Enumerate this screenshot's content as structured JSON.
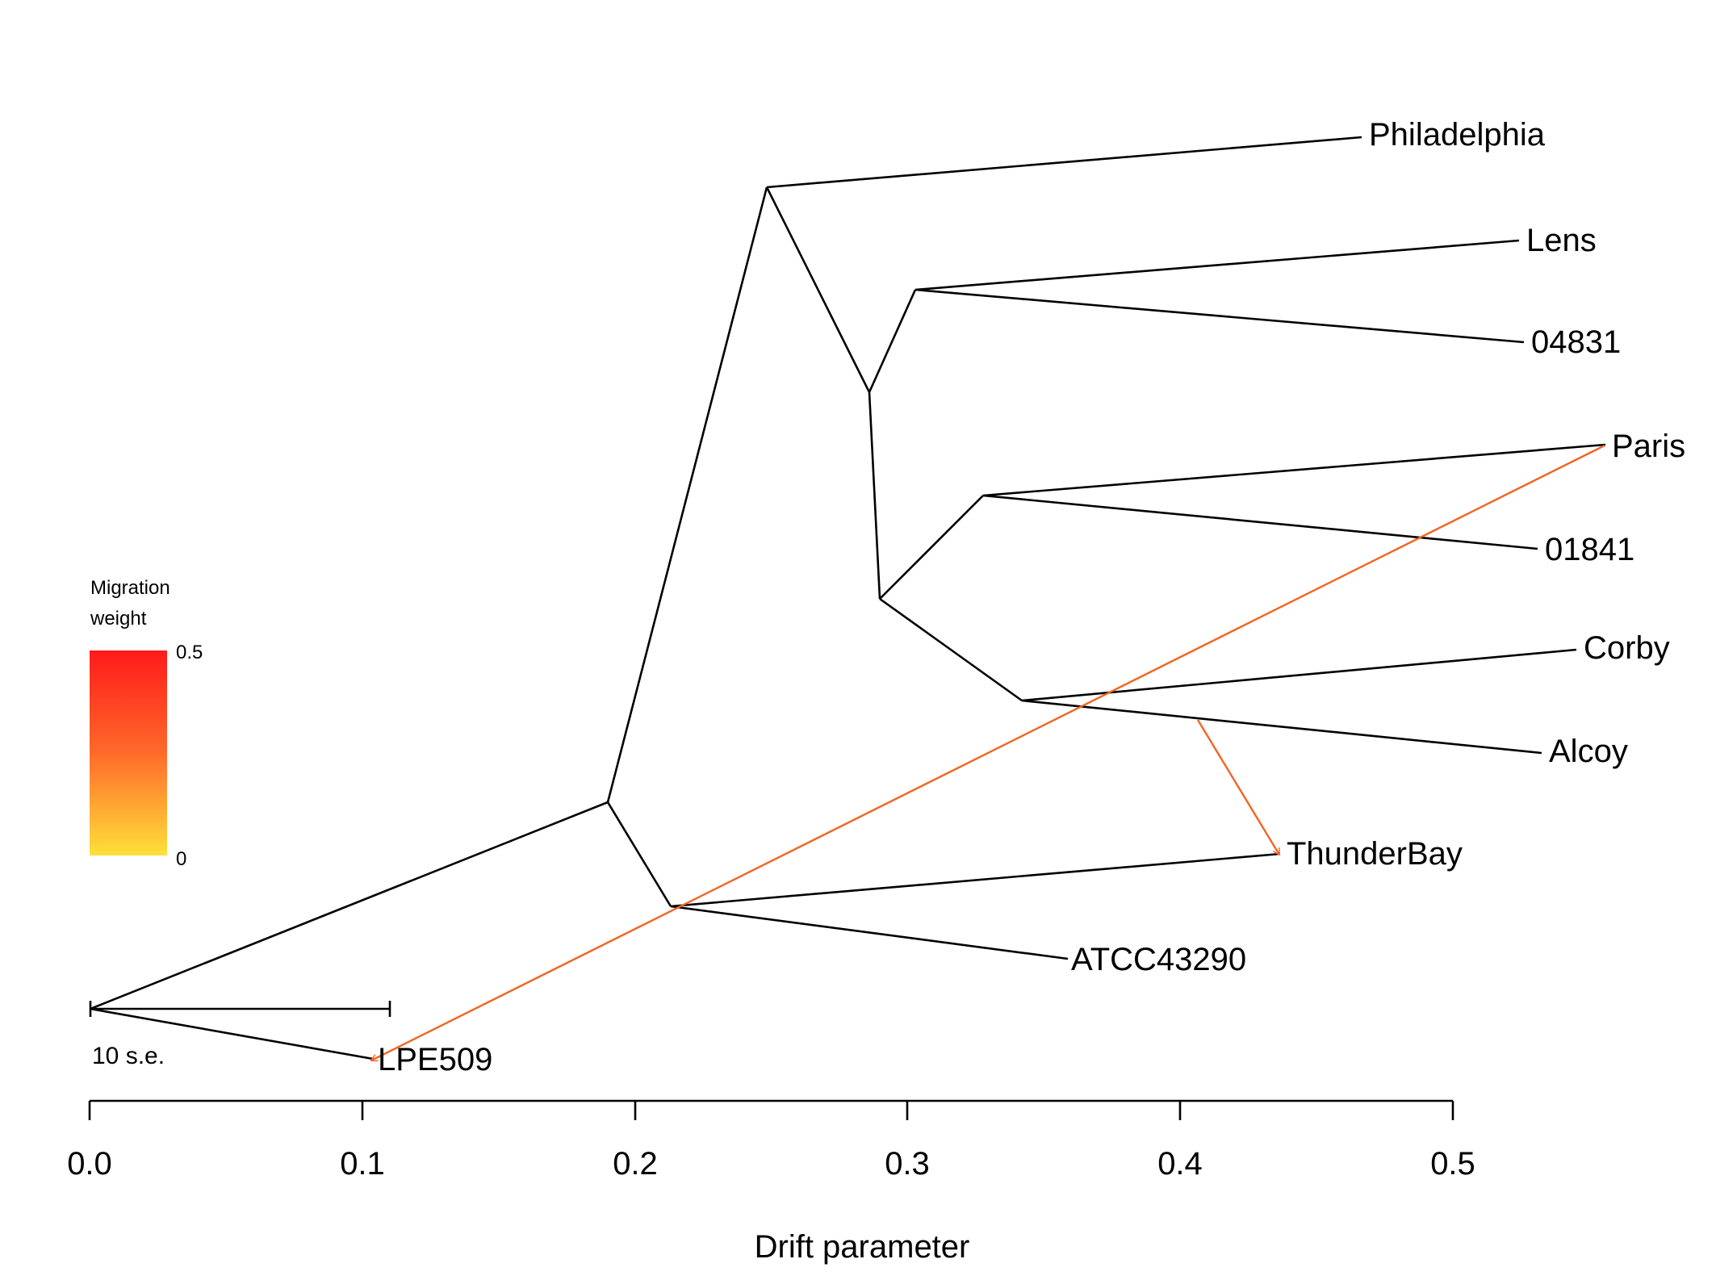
{
  "chart_data": {
    "type": "tree",
    "xlabel": "Drift parameter",
    "xlim": [
      0.0,
      0.5
    ],
    "xticks": [
      "0.0",
      "0.1",
      "0.2",
      "0.3",
      "0.4",
      "0.5"
    ],
    "xtick_values": [
      0.0,
      0.1,
      0.2,
      0.3,
      0.4,
      0.5
    ],
    "leaves": [
      {
        "id": "philadelphia",
        "name": "Philadelphia",
        "drift": 0.468
      },
      {
        "id": "lens",
        "name": "Lens",
        "drift": 0.526
      },
      {
        "id": "04831",
        "name": "04831",
        "drift": 0.527
      },
      {
        "id": "paris",
        "name": "Paris",
        "drift": 0.556
      },
      {
        "id": "01841",
        "name": "01841",
        "drift": 0.53
      },
      {
        "id": "corby",
        "name": "Corby",
        "drift": 0.547
      },
      {
        "id": "alcoy",
        "name": "Alcoy",
        "drift": 0.53
      },
      {
        "id": "thunderbay",
        "name": "ThunderBay",
        "drift": 0.437
      },
      {
        "id": "atcc43290",
        "name": "ATCC43290",
        "drift": 0.361
      },
      {
        "id": "lpe509",
        "name": "LPE509",
        "drift": 0.103
      }
    ],
    "migration_edges": [
      {
        "from": "Paris",
        "to": "LPE509",
        "weight": 0.4
      },
      {
        "from": "Alcoy branch",
        "to": "ThunderBay",
        "weight": 0.4
      }
    ],
    "legend": {
      "title_line1": "Migration",
      "title_line2": "weight",
      "max_label": "0.5",
      "min_label": "0",
      "color_max": "#FF1A1A",
      "color_mid": "#FF6A2A",
      "color_min": "#FFE03A"
    },
    "scale_bar": {
      "label": "10 s.e.",
      "length_drift": 0.11
    },
    "colors": {
      "tree": "#000000",
      "migration": "#F26522"
    }
  }
}
